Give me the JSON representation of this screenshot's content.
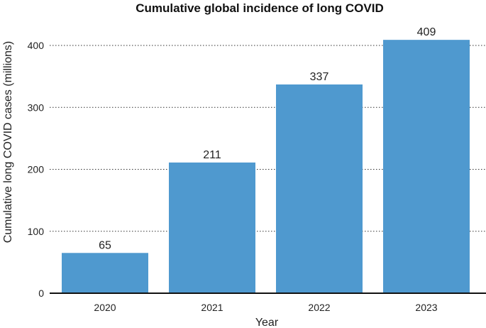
{
  "chart_data": {
    "type": "bar",
    "title": "Cumulative global incidence of long COVID",
    "xlabel": "Year",
    "ylabel": "Cumulative long COVID cases (millions)",
    "categories": [
      "2020",
      "2021",
      "2022",
      "2023"
    ],
    "values": [
      65,
      211,
      337,
      409
    ],
    "data_labels": [
      "65",
      "211",
      "337",
      "409"
    ],
    "ylim": [
      0,
      400
    ],
    "yticks": [
      0,
      100,
      200,
      300,
      400
    ],
    "ytick_labels": [
      "0",
      "100",
      "200",
      "300",
      "400"
    ],
    "grid": "horizontal dotted",
    "legend": "none",
    "bar_color": "#4f99cf"
  }
}
